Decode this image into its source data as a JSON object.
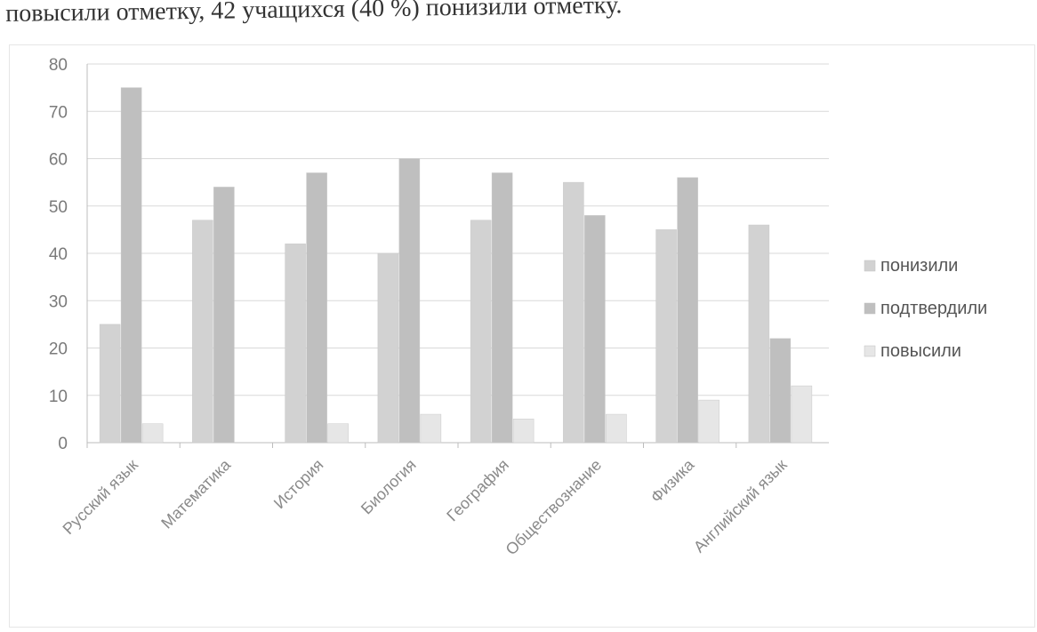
{
  "page": {
    "header_text": "повысили отметку, 42 учащихся (40 %) понизили отметку."
  },
  "chart_data": {
    "type": "bar",
    "categories": [
      "Русский язык",
      "Математика",
      "История",
      "Биология",
      "География",
      "Обществознание",
      "Физика",
      "Английский язык"
    ],
    "series": [
      {
        "name": "понизили",
        "values": [
          25,
          47,
          42,
          40,
          47,
          55,
          45,
          46
        ],
        "color": "#d2d2d2"
      },
      {
        "name": "подтвердили",
        "values": [
          75,
          54,
          57,
          60,
          57,
          48,
          56,
          22
        ],
        "color": "#bfbfbf"
      },
      {
        "name": "повысили",
        "values": [
          4,
          0,
          4,
          6,
          5,
          6,
          9,
          12
        ],
        "color": "#e6e6e6"
      }
    ],
    "ylim": [
      0,
      80
    ],
    "yticks": [
      0,
      10,
      20,
      30,
      40,
      50,
      60,
      70,
      80
    ],
    "grid": true,
    "legend": "right",
    "xlabel": "",
    "ylabel": "",
    "title": ""
  }
}
